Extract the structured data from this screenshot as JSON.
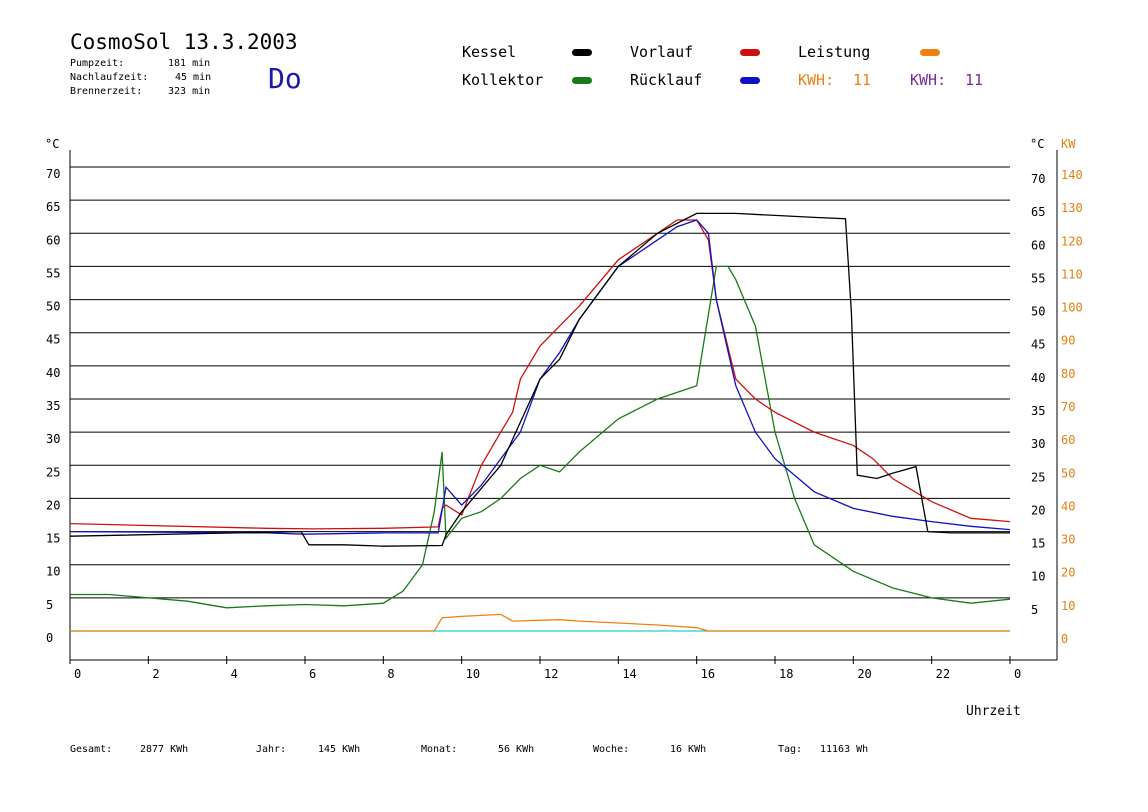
{
  "header": {
    "title": "CosmoSol 13.3.2003",
    "day": "Do",
    "stats": [
      {
        "label": "Pumpzeit:",
        "value": "181 min"
      },
      {
        "label": "Nachlaufzeit:",
        "value": "45 min"
      },
      {
        "label": "Brennerzeit:",
        "value": "323 min"
      }
    ]
  },
  "legend": {
    "kessel": "Kessel",
    "kollektor": "Kollektor",
    "vorlauf": "Vorlauf",
    "ruecklauf": "Rücklauf",
    "leistung": "Leistung",
    "kwh1_label": "KWH:",
    "kwh1_value": "11",
    "kwh2_label": "KWH:",
    "kwh2_value": "11"
  },
  "colors": {
    "kessel": "#000000",
    "kollektor": "#1a7a1a",
    "vorlauf": "#d01010",
    "ruecklauf": "#1010c0",
    "leistung": "#f08010",
    "kwh2": "#7a2a9a",
    "pump": "#20d0d0"
  },
  "footer": [
    {
      "label": "Gesamt:",
      "value": "2877 KWh"
    },
    {
      "label": "Jahr:",
      "value": "145 KWh"
    },
    {
      "label": "Monat:",
      "value": "56 KWh"
    },
    {
      "label": "Woche:",
      "value": "16 KWh"
    },
    {
      "label": "Tag:",
      "value": "11163 Wh"
    }
  ],
  "chart_data": {
    "type": "line",
    "xlabel": "Uhrzeit",
    "ylabel_left": "°C",
    "ylabel_right_temp": "°C",
    "ylabel_right_power": "KW",
    "xlim": [
      0,
      24
    ],
    "ylim": [
      0,
      70
    ],
    "x_ticks": [
      "0",
      "2",
      "4",
      "6",
      "8",
      "10",
      "12",
      "14",
      "16",
      "18",
      "20",
      "22",
      "0"
    ],
    "y_ticks_left": [
      "0",
      "5",
      "10",
      "15",
      "20",
      "25",
      "30",
      "35",
      "40",
      "45",
      "50",
      "55",
      "60",
      "65",
      "70"
    ],
    "y_ticks_right_temp": [
      "5",
      "10",
      "15",
      "20",
      "25",
      "30",
      "35",
      "40",
      "45",
      "50",
      "55",
      "60",
      "65",
      "70"
    ],
    "y_ticks_right_power": [
      "0",
      "10",
      "20",
      "30",
      "40",
      "50",
      "60",
      "70",
      "80",
      "90",
      "100",
      "110",
      "120",
      "130",
      "140"
    ],
    "grid": true,
    "series": [
      {
        "name": "Kessel",
        "x": [
          0,
          5.9,
          6.1,
          7,
          8,
          9.5,
          9.6,
          10,
          11,
          12,
          12.5,
          13,
          14,
          15,
          16,
          17,
          18,
          19,
          19.8,
          19.95,
          20.1,
          20.6,
          21,
          21.6,
          21.9,
          22.5,
          24
        ],
        "y": [
          14.3,
          15,
          13,
          13,
          12.8,
          12.9,
          14.5,
          18,
          25,
          38,
          41,
          47,
          55,
          60,
          63,
          63,
          62.7,
          62.4,
          62.2,
          48,
          23.5,
          23,
          23.8,
          24.8,
          15,
          14.8,
          14.8
        ]
      },
      {
        "name": "Vorlauf",
        "x": [
          0,
          5,
          6.2,
          8,
          9.4,
          9.5,
          9.6,
          10,
          10.5,
          11,
          11.3,
          11.5,
          12,
          12.5,
          13,
          14,
          15,
          15.5,
          16,
          16.3,
          16.5,
          17,
          17.5,
          18,
          19,
          20,
          20.5,
          21,
          22,
          23,
          24
        ],
        "y": [
          16.2,
          15.5,
          15.4,
          15.5,
          15.7,
          18.5,
          19,
          17.5,
          25,
          30,
          33,
          38,
          43,
          46,
          49,
          56,
          60,
          62,
          62,
          59,
          50,
          38,
          35,
          33,
          30,
          28,
          26,
          23,
          19.5,
          17,
          16.5
        ]
      },
      {
        "name": "Rücklauf",
        "x": [
          0,
          5,
          6,
          8,
          9.4,
          9.6,
          10,
          10.5,
          11,
          11.5,
          12,
          12.5,
          13,
          14,
          15,
          15.5,
          16,
          16.3,
          16.5,
          17,
          17.5,
          18,
          19,
          20,
          21,
          22,
          23,
          24
        ],
        "y": [
          15,
          14.8,
          14.6,
          14.8,
          14.8,
          21.7,
          19,
          22,
          26,
          30,
          38,
          42,
          47,
          55,
          59,
          61,
          62,
          60,
          50,
          37,
          30,
          26,
          21,
          18.5,
          17.3,
          16.5,
          15.8,
          15.3
        ]
      },
      {
        "name": "Kollektor",
        "x": [
          0,
          1,
          3,
          4,
          5,
          6,
          7,
          8,
          8.5,
          9,
          9.3,
          9.5,
          9.6,
          10,
          10.5,
          11,
          11.5,
          12,
          12.5,
          13,
          14,
          15,
          15.5,
          16,
          16.5,
          16.8,
          17,
          17.5,
          18,
          18.5,
          19,
          20,
          21,
          22,
          23,
          24
        ],
        "y": [
          5.5,
          5.5,
          4.5,
          3.5,
          3.8,
          4,
          3.8,
          4.2,
          6,
          10,
          18,
          27,
          14,
          17,
          18,
          20,
          23,
          25,
          24,
          27,
          32,
          35,
          36,
          37,
          55,
          55,
          53,
          46,
          30,
          20,
          13,
          9,
          6.5,
          5,
          4.2,
          4.8
        ]
      },
      {
        "name": "Leistung",
        "x": [
          0,
          9.3,
          9.5,
          10,
          11,
          11.3,
          12.5,
          13,
          14,
          15,
          16,
          16.3,
          24
        ],
        "y": [
          0,
          0,
          2,
          2.2,
          2.5,
          1.5,
          1.7,
          1.5,
          1.2,
          0.9,
          0.5,
          0,
          0
        ]
      }
    ]
  }
}
